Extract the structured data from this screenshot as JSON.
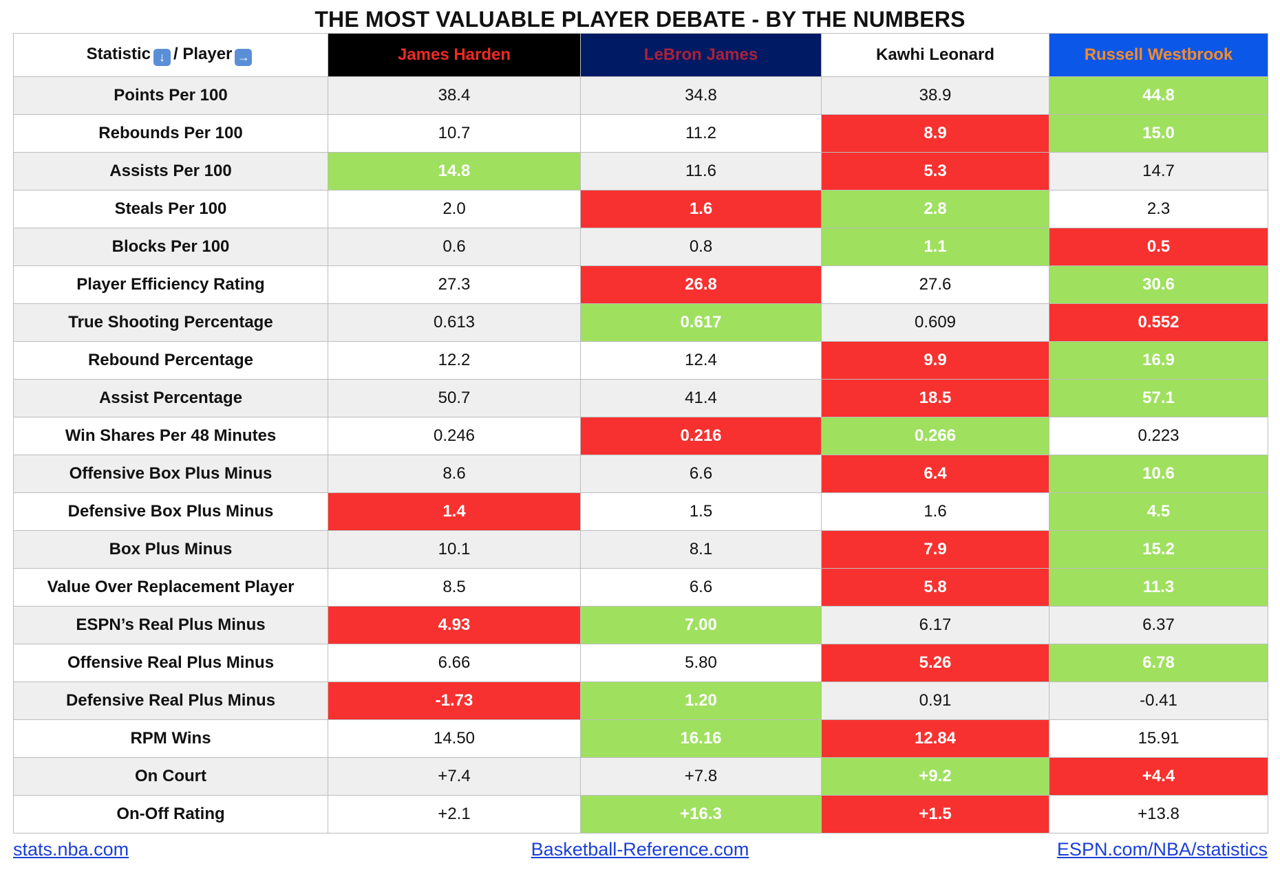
{
  "title": "THE MOST VALUABLE PLAYER DEBATE - BY THE NUMBERS",
  "header": {
    "statistic_label": "Statistic",
    "player_label": "/ Player",
    "down_icon": "down-arrow-icon",
    "right_icon": "right-arrow-icon",
    "players": [
      {
        "name": "James Harden",
        "bg": "#000000",
        "fg": "#ee2a24"
      },
      {
        "name": "LeBron James",
        "bg": "#001a64",
        "fg": "#a8223a"
      },
      {
        "name": "Kawhi Leonard",
        "bg": "#ffffff",
        "fg": "#111111"
      },
      {
        "name": "Russell Westbrook",
        "bg": "#0a57e8",
        "fg": "#f68a2a"
      }
    ]
  },
  "colors": {
    "green": "#9fe05f",
    "red": "#f7312f",
    "row_odd": "#efefef",
    "row_even": "#ffffff",
    "link": "#1a3fd6"
  },
  "rows": [
    {
      "label": "Points Per 100",
      "values": [
        "38.4",
        "34.8",
        "38.9",
        "44.8"
      ],
      "marks": [
        "",
        "",
        "",
        "g"
      ]
    },
    {
      "label": "Rebounds Per 100",
      "values": [
        "10.7",
        "11.2",
        "8.9",
        "15.0"
      ],
      "marks": [
        "",
        "",
        "r",
        "g"
      ]
    },
    {
      "label": "Assists Per 100",
      "values": [
        "14.8",
        "11.6",
        "5.3",
        "14.7"
      ],
      "marks": [
        "g",
        "",
        "r",
        ""
      ]
    },
    {
      "label": "Steals Per 100",
      "values": [
        "2.0",
        "1.6",
        "2.8",
        "2.3"
      ],
      "marks": [
        "",
        "r",
        "g",
        ""
      ]
    },
    {
      "label": "Blocks Per 100",
      "values": [
        "0.6",
        "0.8",
        "1.1",
        "0.5"
      ],
      "marks": [
        "",
        "",
        "g",
        "r"
      ]
    },
    {
      "label": "Player Efficiency Rating",
      "values": [
        "27.3",
        "26.8",
        "27.6",
        "30.6"
      ],
      "marks": [
        "",
        "r",
        "",
        "g"
      ]
    },
    {
      "label": "True Shooting Percentage",
      "values": [
        "0.613",
        "0.617",
        "0.609",
        "0.552"
      ],
      "marks": [
        "",
        "g",
        "",
        "r"
      ]
    },
    {
      "label": "Rebound Percentage",
      "values": [
        "12.2",
        "12.4",
        "9.9",
        "16.9"
      ],
      "marks": [
        "",
        "",
        "r",
        "g"
      ]
    },
    {
      "label": "Assist Percentage",
      "values": [
        "50.7",
        "41.4",
        "18.5",
        "57.1"
      ],
      "marks": [
        "",
        "",
        "r",
        "g"
      ]
    },
    {
      "label": "Win Shares Per 48 Minutes",
      "values": [
        "0.246",
        "0.216",
        "0.266",
        "0.223"
      ],
      "marks": [
        "",
        "r",
        "g",
        ""
      ]
    },
    {
      "label": "Offensive Box Plus Minus",
      "values": [
        "8.6",
        "6.6",
        "6.4",
        "10.6"
      ],
      "marks": [
        "",
        "",
        "r",
        "g"
      ]
    },
    {
      "label": "Defensive Box Plus Minus",
      "values": [
        "1.4",
        "1.5",
        "1.6",
        "4.5"
      ],
      "marks": [
        "r",
        "",
        "",
        "g"
      ]
    },
    {
      "label": "Box Plus Minus",
      "values": [
        "10.1",
        "8.1",
        "7.9",
        "15.2"
      ],
      "marks": [
        "",
        "",
        "r",
        "g"
      ]
    },
    {
      "label": "Value Over Replacement Player",
      "values": [
        "8.5",
        "6.6",
        "5.8",
        "11.3"
      ],
      "marks": [
        "",
        "",
        "r",
        "g"
      ]
    },
    {
      "label": "ESPN’s Real Plus Minus",
      "values": [
        "4.93",
        "7.00",
        "6.17",
        "6.37"
      ],
      "marks": [
        "r",
        "g",
        "",
        ""
      ]
    },
    {
      "label": "Offensive Real Plus Minus",
      "values": [
        "6.66",
        "5.80",
        "5.26",
        "6.78"
      ],
      "marks": [
        "",
        "",
        "r",
        "g"
      ]
    },
    {
      "label": "Defensive Real Plus Minus",
      "values": [
        "-1.73",
        "1.20",
        "0.91",
        "-0.41"
      ],
      "marks": [
        "r",
        "g",
        "",
        ""
      ]
    },
    {
      "label": "RPM Wins",
      "values": [
        "14.50",
        "16.16",
        "12.84",
        "15.91"
      ],
      "marks": [
        "",
        "g",
        "r",
        ""
      ]
    },
    {
      "label": "On Court",
      "values": [
        "+7.4",
        "+7.8",
        "+9.2",
        "+4.4"
      ],
      "marks": [
        "",
        "",
        "g",
        "r"
      ]
    },
    {
      "label": "On-Off Rating",
      "values": [
        "+2.1",
        "+16.3",
        "+1.5",
        "+13.8"
      ],
      "marks": [
        "",
        "g",
        "r",
        ""
      ]
    }
  ],
  "footer": {
    "links": [
      "stats.nba.com",
      "Basketball-Reference.com",
      "ESPN.com/NBA/statistics"
    ]
  }
}
